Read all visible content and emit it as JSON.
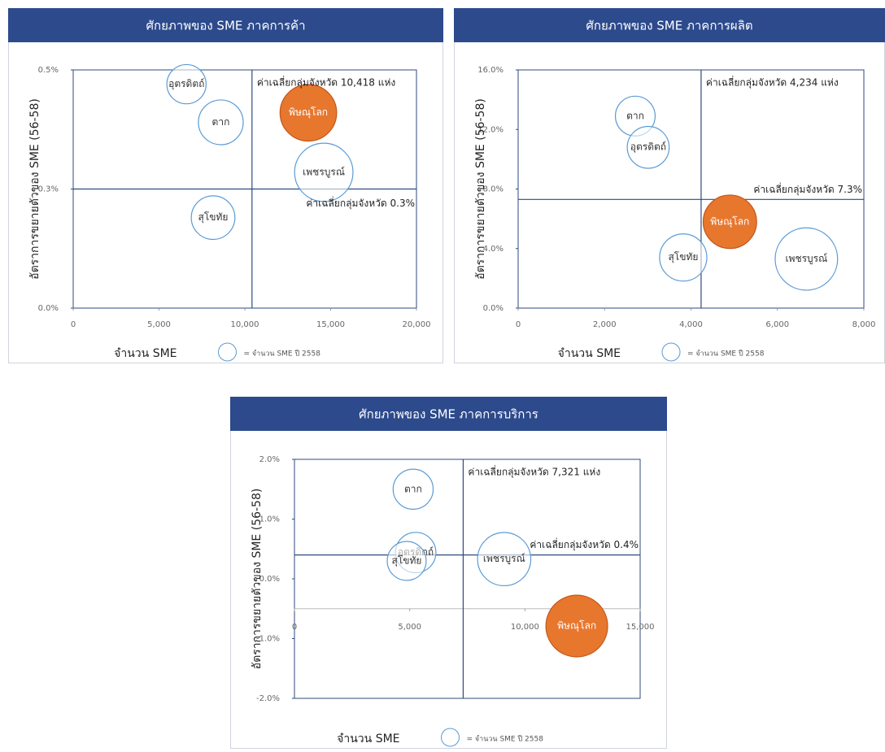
{
  "chart_data": [
    {
      "type": "bubble",
      "title": "ศักยภาพของ SME ภาคการค้า",
      "x_label": "จำนวน SME",
      "y_label": "อัตราการขยายตัวของ SME (56-58)",
      "legend": "= จำนวน SME ปี 2558",
      "categories": [
        "อุตรดิตถ์",
        "ตาก",
        "พิษณุโลก",
        "เพชรบูรณ์",
        "สุโขทัย"
      ],
      "x": [
        6600,
        8600,
        13700,
        14600,
        8150
      ],
      "values": [
        0.47,
        0.39,
        0.41,
        0.285,
        0.19
      ],
      "colors": [
        "#ffffff",
        "#ffffff",
        "#e8772e",
        "#ffffff",
        "#ffffff"
      ],
      "edge_color": "#5b9bd5",
      "xlim": [
        0,
        20000
      ],
      "ylim": [
        0,
        0.5
      ],
      "xticks": [
        0,
        {
          "value": 5000,
          "label": "5,000"
        },
        {
          "value": 10000,
          "label": "10,000"
        },
        {
          "value": 15000,
          "label": "15,000"
        },
        {
          "value": 20000,
          "label": "20,000"
        }
      ],
      "yticks": [
        {
          "value": 0,
          "label": "0.0%"
        },
        {
          "value": 0.25,
          "label": "0.3%"
        },
        {
          "value": 0.5,
          "label": "0.5%"
        }
      ],
      "avg_x": {
        "value": 10418,
        "label": "ค่าเฉลี่ยกลุ่มจังหวัด 10,418 แห่ง"
      },
      "avg_y": {
        "value": 0.25,
        "label": "ค่าเฉลี่ยกลุ่มจังหวัด 0.3%"
      },
      "avg_color": "#2f4a7e"
    },
    {
      "type": "bubble",
      "title": "ศักยภาพของ SME ภาคการผลิต",
      "x_label": "จำนวน SME",
      "y_label": "อัตราการขยายตัวของ SME (56-58)",
      "legend": "= จำนวน SME ปี 2558",
      "categories": [
        "ตาก",
        "อุตรดิตถ์",
        "พิษณุโลก",
        "สุโขทัย",
        "เพชรบูรณ์"
      ],
      "x": [
        2710,
        3010,
        4900,
        3820,
        6670
      ],
      "values": [
        12.9,
        10.8,
        5.8,
        3.4,
        3.3
      ],
      "colors": [
        "#ffffff",
        "#ffffff",
        "#e8772e",
        "#ffffff",
        "#ffffff"
      ],
      "edge_color": "#5b9bd5",
      "xlim": [
        0,
        8000
      ],
      "ylim": [
        0,
        16
      ],
      "xticks": [
        0,
        {
          "value": 2000,
          "label": "2,000"
        },
        {
          "value": 4000,
          "label": "4,000"
        },
        {
          "value": 6000,
          "label": "6,000"
        },
        {
          "value": 8000,
          "label": "8,000"
        }
      ],
      "yticks": [
        {
          "value": 0,
          "label": "0.0%"
        },
        {
          "value": 4,
          "label": "4.0%"
        },
        {
          "value": 8,
          "label": "8.0%"
        },
        {
          "value": 12,
          "label": "12.0%"
        },
        {
          "value": 16,
          "label": "16.0%"
        }
      ],
      "avg_x": {
        "value": 4234,
        "label": "ค่าเฉลี่ยกลุ่มจังหวัด 4,234 แห่ง"
      },
      "avg_y": {
        "value": 7.3,
        "label": "ค่าเฉลี่ยกลุ่มจังหวัด 7.3%"
      },
      "avg_color": "#2f4a7e"
    },
    {
      "type": "bubble",
      "title": "ศักยภาพของ SME ภาคการบริการ",
      "x_label": "จำนวน SME",
      "y_label": "อัตราการขยายตัวของ SME (56-58)",
      "legend": "= จำนวน SME ปี 2558",
      "categories": [
        "ตาก",
        "อุตรดิตถ์",
        "สุโขทัย",
        "เพชรบูรณ์",
        "พิษณุโลก"
      ],
      "x": [
        5150,
        5260,
        4870,
        9100,
        12250
      ],
      "values": [
        1.5,
        0.44,
        0.3,
        0.33,
        -0.79
      ],
      "colors": [
        "#ffffff",
        "#ffffff",
        "#ffffff",
        "#ffffff",
        "#e8772e"
      ],
      "edge_color": "#5b9bd5",
      "xlim": [
        0,
        15000
      ],
      "ylim": [
        -2,
        2
      ],
      "x_axis_at": -0.5,
      "xticks": [
        0,
        {
          "value": 5000,
          "label": "5,000"
        },
        {
          "value": 10000,
          "label": "10,000"
        },
        {
          "value": 15000,
          "label": "15,000"
        }
      ],
      "yticks": [
        {
          "value": -2,
          "label": "-2.0%"
        },
        {
          "value": -1,
          "label": "-1.0%"
        },
        {
          "value": 0,
          "label": "0.0%"
        },
        {
          "value": 1,
          "label": "1.0%"
        },
        {
          "value": 2,
          "label": "2.0%"
        }
      ],
      "avg_x": {
        "value": 7321,
        "label": "ค่าเฉลี่ยกลุ่มจังหวัด 7,321 แห่ง"
      },
      "avg_y": {
        "value": 0.4,
        "label": "ค่าเฉลี่ยกลุ่มจังหวัด 0.4%"
      },
      "avg_color": "#2f4a7e"
    }
  ]
}
